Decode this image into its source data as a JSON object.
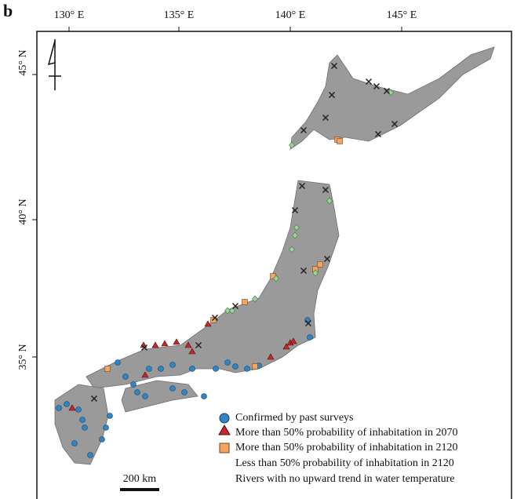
{
  "panel_label": "b",
  "longitude_labels": [
    "130° E",
    "135° E",
    "140° E",
    "145° E"
  ],
  "latitude_labels": [
    "45° N",
    "40° N",
    "35° N"
  ],
  "legend": [
    "Confirmed by past surveys",
    "More than 50% probability of inhabitation in 2070",
    "More than 50% probability of inhabitation in 2120",
    "Less than 50% probability of inhabitation in 2120",
    "Rivers with no upward trend in water temperature"
  ],
  "scale_bar": "200 km"
}
